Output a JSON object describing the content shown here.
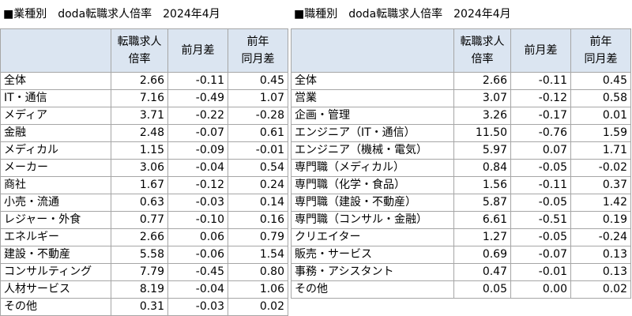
{
  "left": {
    "title": "■業種別　doda転職求人倍率　2024年4月",
    "headers": [
      "",
      "転職求人\n倍率",
      "前月差",
      "前年\n同月差"
    ],
    "rows": [
      [
        "全体",
        "2.66",
        "-0.11",
        "0.45"
      ],
      [
        "IT・通信",
        "7.16",
        "-0.49",
        "1.07"
      ],
      [
        "メディア",
        "3.71",
        "-0.22",
        "-0.28"
      ],
      [
        "金融",
        "2.48",
        "-0.07",
        "0.61"
      ],
      [
        "メディカル",
        "1.15",
        "-0.09",
        "-0.01"
      ],
      [
        "メーカー",
        "3.06",
        "-0.04",
        "0.54"
      ],
      [
        "商社",
        "1.67",
        "-0.12",
        "0.24"
      ],
      [
        "小売・流通",
        "0.63",
        "-0.03",
        "0.14"
      ],
      [
        "レジャー・外食",
        "0.77",
        "-0.10",
        "0.16"
      ],
      [
        "エネルギー",
        "2.66",
        "0.06",
        "0.79"
      ],
      [
        "建設・不動産",
        "5.58",
        "-0.06",
        "1.54"
      ],
      [
        "コンサルティング",
        "7.79",
        "-0.45",
        "0.80"
      ],
      [
        "人材サービス",
        "8.19",
        "-0.04",
        "1.06"
      ],
      [
        "その他",
        "0.31",
        "-0.03",
        "0.02"
      ]
    ]
  },
  "right": {
    "title": "■職種別　doda転職求人倍率　2024年4月",
    "headers": [
      "",
      "転職求人\n倍率",
      "前月差",
      "前年\n同月差"
    ],
    "rows": [
      [
        "全体",
        "2.66",
        "-0.11",
        "0.45"
      ],
      [
        "営業",
        "3.07",
        "-0.12",
        "0.58"
      ],
      [
        "企画・管理",
        "3.26",
        "-0.17",
        "0.01"
      ],
      [
        "エンジニア（IT・通信）",
        "11.50",
        "-0.76",
        "1.59"
      ],
      [
        "エンジニア（機械・電気）",
        "5.97",
        "0.07",
        "1.71"
      ],
      [
        "専門職（メディカル）",
        "0.84",
        "-0.05",
        "-0.02"
      ],
      [
        "専門職（化学・食品）",
        "1.56",
        "-0.11",
        "0.37"
      ],
      [
        "専門職（建設・不動産）",
        "5.87",
        "-0.05",
        "1.42"
      ],
      [
        "専門職（コンサル・金融）",
        "6.61",
        "-0.51",
        "0.19"
      ],
      [
        "クリエイター",
        "1.27",
        "-0.05",
        "-0.24"
      ],
      [
        "販売・サービス",
        "0.69",
        "-0.07",
        "0.13"
      ],
      [
        "事務・アシスタント",
        "0.47",
        "-0.01",
        "0.13"
      ],
      [
        "その他",
        "0.05",
        "0.00",
        "0.02"
      ]
    ]
  },
  "colors": {
    "header_bg": "#dbe5f1",
    "border": "#a6a6a6"
  }
}
